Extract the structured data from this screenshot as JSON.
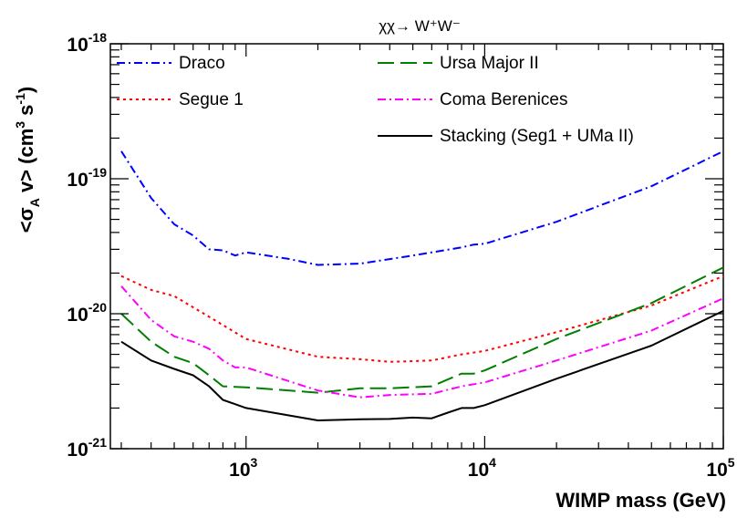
{
  "chart_data": {
    "type": "line",
    "title": "χχ→ W⁺W⁻",
    "xlabel": "WIMP mass (GeV)",
    "ylabel": "<σ_A v> (cm³ s⁻¹)",
    "xscale": "log",
    "yscale": "log",
    "xlim": [
      270,
      100000
    ],
    "ylim": [
      1e-21,
      1e-18
    ],
    "grid": false,
    "legend_placement": "top",
    "x_ticks": [
      {
        "value": 1000,
        "base": "10",
        "exp": "3"
      },
      {
        "value": 10000,
        "base": "10",
        "exp": "4"
      },
      {
        "value": 100000,
        "base": "10",
        "exp": "5"
      }
    ],
    "y_ticks": [
      {
        "value": 1e-21,
        "base": "10",
        "exp": "-21"
      },
      {
        "value": 1e-20,
        "base": "10",
        "exp": "-20"
      },
      {
        "value": 1e-19,
        "base": "10",
        "exp": "-19"
      },
      {
        "value": 1e-18,
        "base": "10",
        "exp": "-18"
      }
    ],
    "series": [
      {
        "name": "Draco",
        "color": "#0000ff",
        "dash": "dashdot",
        "x": [
          300,
          400,
          500,
          600,
          700,
          800,
          900,
          1000,
          1500,
          2000,
          3000,
          5000,
          8000,
          9000,
          10000,
          20000,
          50000,
          100000
        ],
        "y": [
          1.6e-19,
          7.2e-20,
          4.6e-20,
          3.8e-20,
          3e-20,
          2.95e-20,
          2.7e-20,
          2.85e-20,
          2.55e-20,
          2.3e-20,
          2.35e-20,
          2.7e-20,
          3.1e-20,
          3.25e-20,
          3.3e-20,
          4.8e-20,
          8.8e-20,
          1.6e-19
        ]
      },
      {
        "name": "Segue 1",
        "color": "#ff0000",
        "dash": "dotted",
        "x": [
          300,
          400,
          500,
          700,
          1000,
          2000,
          3000,
          4000,
          6000,
          8000,
          10000,
          20000,
          50000,
          100000
        ],
        "y": [
          1.9e-20,
          1.5e-20,
          1.35e-20,
          9.5e-21,
          6.5e-21,
          4.8e-21,
          4.6e-21,
          4.4e-21,
          4.5e-21,
          5e-21,
          5.3e-21,
          7.3e-21,
          1.15e-20,
          1.9e-20
        ]
      },
      {
        "name": "Ursa Major II",
        "color": "#008000",
        "dash": "longdash",
        "x": [
          300,
          400,
          500,
          600,
          700,
          800,
          1000,
          2000,
          3000,
          4000,
          6000,
          8000,
          9000,
          10000,
          20000,
          50000,
          100000
        ],
        "y": [
          1e-20,
          6.2e-21,
          4.8e-21,
          4.3e-21,
          3.5e-21,
          2.9e-21,
          2.85e-21,
          2.6e-21,
          2.8e-21,
          2.8e-21,
          2.9e-21,
          3.6e-21,
          3.6e-21,
          3.8e-21,
          6.5e-21,
          1.2e-20,
          2.2e-20
        ]
      },
      {
        "name": "Coma Berenices",
        "color": "#ff00ff",
        "dash": "dashdot",
        "x": [
          300,
          400,
          500,
          600,
          700,
          800,
          900,
          1000,
          2000,
          3000,
          4000,
          6000,
          8000,
          10000,
          20000,
          50000,
          100000
        ],
        "y": [
          1.6e-20,
          9e-21,
          6.8e-21,
          6.2e-21,
          5.5e-21,
          4.5e-21,
          4e-21,
          4e-21,
          2.7e-21,
          2.4e-21,
          2.5e-21,
          2.55e-21,
          2.9e-21,
          3.1e-21,
          4.5e-21,
          7.5e-21,
          1.3e-20
        ]
      },
      {
        "name": "Stacking (Seg1 + UMa II)",
        "color": "#000000",
        "dash": "solid",
        "x": [
          300,
          400,
          500,
          600,
          700,
          800,
          1000,
          2000,
          3000,
          4000,
          5000,
          6000,
          7000,
          8000,
          9000,
          10000,
          20000,
          50000,
          100000
        ],
        "y": [
          6.2e-21,
          4.5e-21,
          3.9e-21,
          3.5e-21,
          2.9e-21,
          2.3e-21,
          2e-21,
          1.62e-21,
          1.65e-21,
          1.66e-21,
          1.7e-21,
          1.68e-21,
          1.85e-21,
          2e-21,
          2e-21,
          2.1e-21,
          3.3e-21,
          5.8e-21,
          1.05e-20
        ]
      }
    ]
  }
}
